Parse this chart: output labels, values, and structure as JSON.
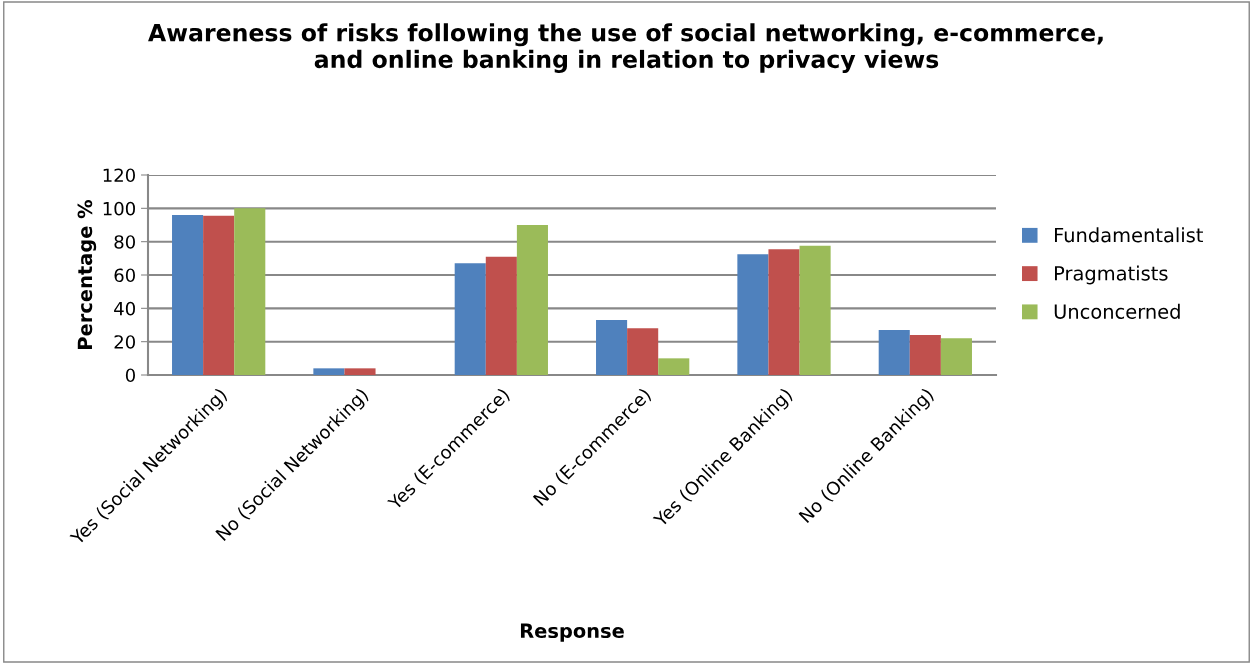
{
  "chart_data": {
    "type": "bar",
    "title": "Awareness of risks following the use of social networking, e-commerce,\nand online banking in relation to privacy views",
    "xlabel": "Response",
    "ylabel": "Percentage %",
    "categories": [
      "Yes (Social Networking)",
      "No (Social Networking)",
      "Yes (E-commerce)",
      "No (E-commerce)",
      "Yes (Online Banking)",
      "No (Online Banking)"
    ],
    "series": [
      {
        "name": "Fundamentalist",
        "color": "#4f81bd",
        "values": [
          96,
          4,
          67,
          33,
          72.5,
          27
        ]
      },
      {
        "name": "Pragmatists",
        "color": "#c0504d",
        "values": [
          95.5,
          4,
          71,
          28,
          75.5,
          24
        ]
      },
      {
        "name": "Unconcerned",
        "color": "#9bbb59",
        "values": [
          100,
          0,
          90,
          10,
          77.5,
          22
        ]
      }
    ],
    "ylim": [
      0,
      120
    ],
    "yticks": [
      0,
      20,
      40,
      60,
      80,
      100,
      120
    ],
    "grid": "y",
    "legend": "right"
  }
}
